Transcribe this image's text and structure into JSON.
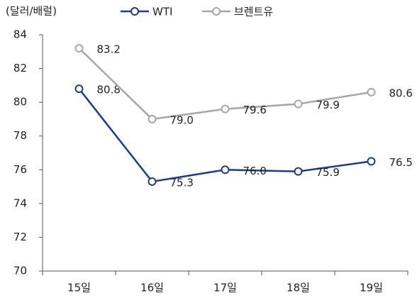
{
  "chart_data": {
    "type": "line",
    "y_label": "(달러/배럴)",
    "categories": [
      "15일",
      "16일",
      "17일",
      "18일",
      "19일"
    ],
    "series": [
      {
        "name": "WTI",
        "color": "#1f3c88",
        "values": [
          80.8,
          75.3,
          76.0,
          75.9,
          76.5
        ],
        "value_labels": [
          "80.8",
          "75.3",
          "76.0",
          "75.9",
          "76.5"
        ]
      },
      {
        "name": "브렌트유",
        "color": "#a6a6a6",
        "values": [
          83.2,
          79.0,
          79.6,
          79.9,
          80.6
        ],
        "value_labels": [
          "83.2",
          "79.0",
          "79.6",
          "79.9",
          "80.6"
        ]
      }
    ],
    "ylim": [
      70,
      84
    ],
    "yticks": [
      70,
      72,
      74,
      76,
      78,
      80,
      82,
      84
    ],
    "grid": false
  }
}
